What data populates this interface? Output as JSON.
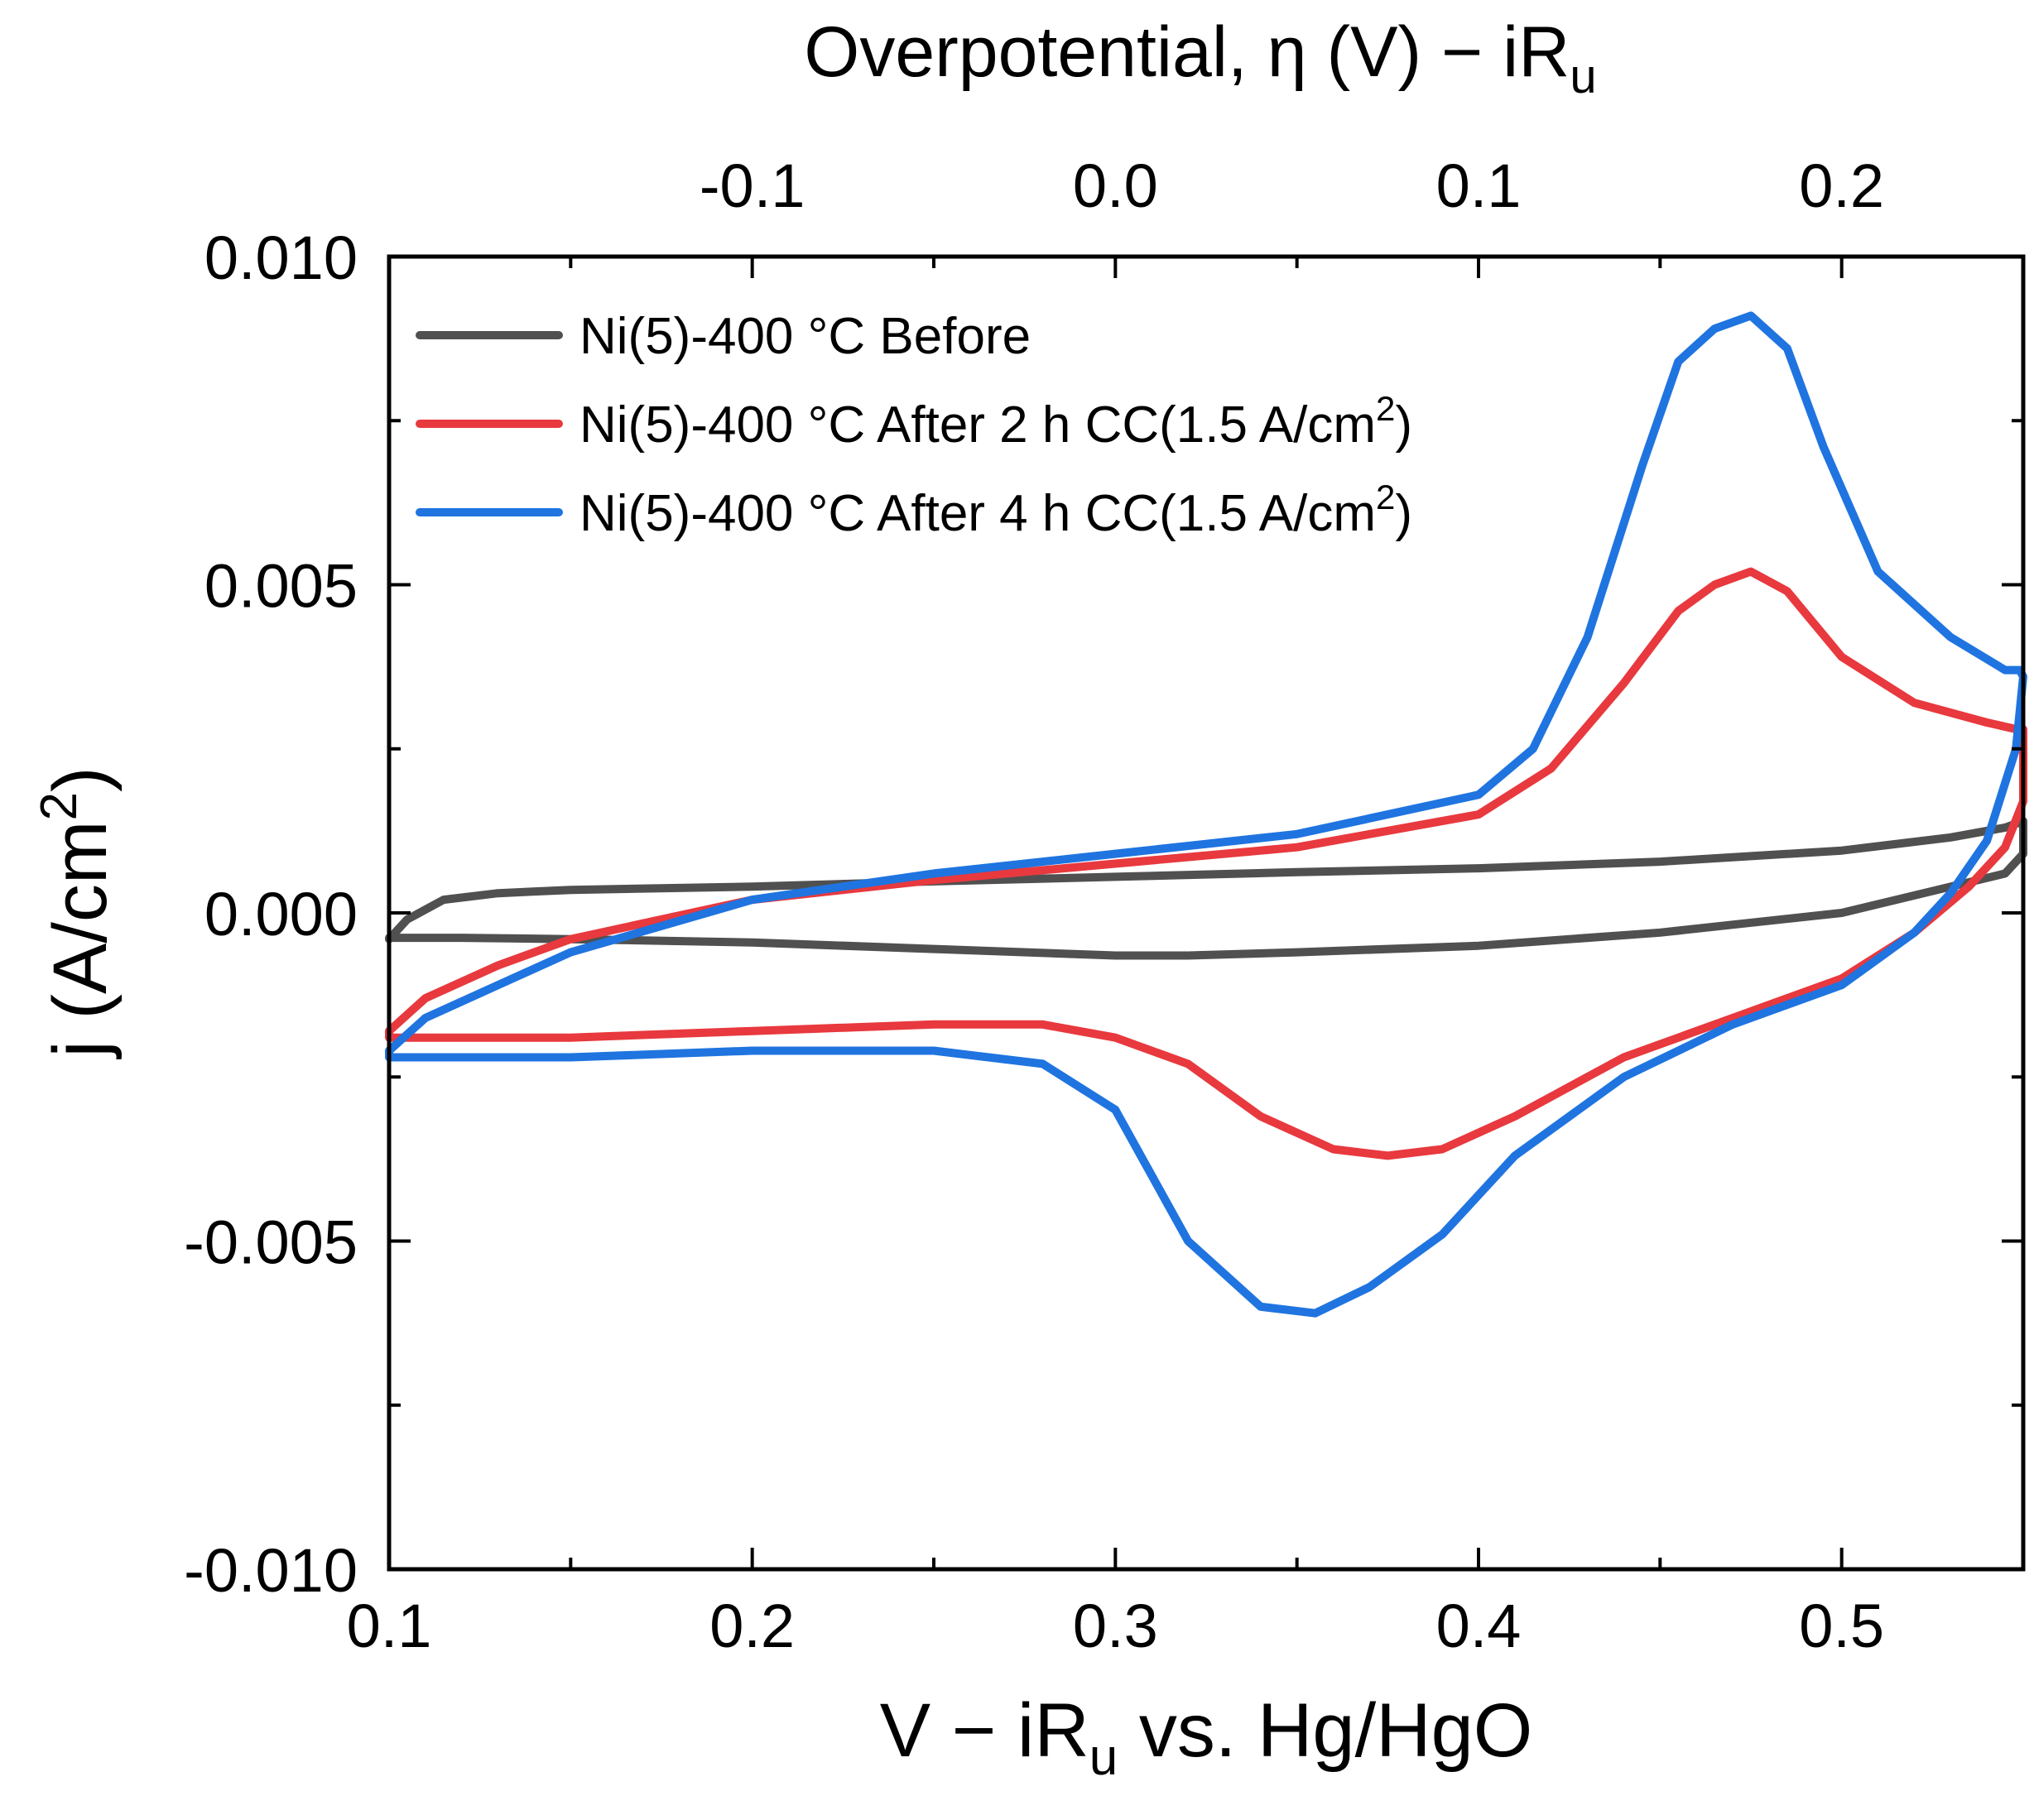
{
  "chart_data": {
    "type": "line",
    "title": "",
    "xlabel": "V − iR",
    "xlabel_sub": "u",
    "xlabel_rest": " vs. Hg/HgO",
    "top_xlabel": "Overpotential, η (V) − iR",
    "top_xlabel_sub": "u",
    "ylabel": "j (A/cm",
    "ylabel_sup": "2",
    "ylabel_end": ")",
    "xlim": [
      0.1,
      0.55
    ],
    "ylim": [
      -0.01,
      0.01
    ],
    "x_ticks": [
      "0.1",
      "0.2",
      "0.3",
      "0.4",
      "0.5"
    ],
    "x_tick_values": [
      0.1,
      0.2,
      0.3,
      0.4,
      0.5
    ],
    "y_ticks": [
      "0.010",
      "0.005",
      "0.000",
      "-0.005",
      "-0.010"
    ],
    "y_tick_values": [
      0.01,
      0.005,
      0.0,
      -0.005,
      -0.01
    ],
    "top_x_ticks": [
      "-0.1",
      "0.0",
      "0.1",
      "0.2"
    ],
    "top_x_tick_values": [
      -0.1,
      0.0,
      0.1,
      0.2
    ],
    "top_axis_offset": 0.3,
    "grid": false,
    "legend_position": "top-left",
    "series": [
      {
        "name": "Ni(5)-400 °C Before",
        "legend_label": "Ni(5)-400 °C Before",
        "legend_sup": "",
        "legend_end": "",
        "color": "#505050",
        "x": [
          0.1,
          0.105,
          0.115,
          0.13,
          0.15,
          0.2,
          0.25,
          0.3,
          0.35,
          0.4,
          0.45,
          0.5,
          0.53,
          0.545,
          0.55,
          0.55,
          0.545,
          0.53,
          0.5,
          0.45,
          0.4,
          0.35,
          0.32,
          0.3,
          0.25,
          0.2,
          0.15,
          0.12,
          0.1,
          0.1
        ],
        "y": [
          -0.0004,
          -0.0001,
          0.0002,
          0.0003,
          0.00035,
          0.0004,
          0.00048,
          0.00055,
          0.00062,
          0.00068,
          0.00078,
          0.00095,
          0.00115,
          0.0013,
          0.0014,
          0.0009,
          0.0006,
          0.0004,
          0.0,
          -0.0003,
          -0.0005,
          -0.0006,
          -0.00065,
          -0.00065,
          -0.00055,
          -0.00045,
          -0.0004,
          -0.00038,
          -0.00038,
          -0.0004
        ]
      },
      {
        "name": "Ni(5)-400 °C After 2 h CC(1.5 A/cm2)",
        "legend_label": "Ni(5)-400 °C After 2 h CC(1.5 A/cm",
        "legend_sup": "2",
        "legend_end": ")",
        "color": "#E8393E",
        "x": [
          0.1,
          0.11,
          0.13,
          0.15,
          0.2,
          0.25,
          0.3,
          0.35,
          0.4,
          0.42,
          0.44,
          0.455,
          0.465,
          0.475,
          0.485,
          0.5,
          0.52,
          0.54,
          0.548,
          0.55,
          0.55,
          0.545,
          0.535,
          0.52,
          0.5,
          0.47,
          0.44,
          0.41,
          0.39,
          0.375,
          0.36,
          0.34,
          0.32,
          0.3,
          0.28,
          0.25,
          0.2,
          0.15,
          0.12,
          0.1,
          0.1
        ],
        "y": [
          -0.0018,
          -0.0013,
          -0.0008,
          -0.0004,
          0.0002,
          0.0005,
          0.00075,
          0.001,
          0.0015,
          0.0022,
          0.0035,
          0.0046,
          0.005,
          0.0052,
          0.0049,
          0.0039,
          0.0032,
          0.0029,
          0.0028,
          0.0028,
          0.0017,
          0.001,
          0.0004,
          -0.0003,
          -0.001,
          -0.0016,
          -0.0022,
          -0.0031,
          -0.0036,
          -0.0037,
          -0.0036,
          -0.0031,
          -0.0023,
          -0.0019,
          -0.0017,
          -0.0017,
          -0.0018,
          -0.0019,
          -0.0019,
          -0.0019,
          -0.0018
        ]
      },
      {
        "name": "Ni(5)-400 °C After 4 h CC(1.5 A/cm2)",
        "legend_label": "Ni(5)-400 °C After 4 h CC(1.5 A/cm",
        "legend_sup": "2",
        "legend_end": ")",
        "color": "#1F74E0",
        "x": [
          0.1,
          0.11,
          0.13,
          0.15,
          0.2,
          0.25,
          0.3,
          0.35,
          0.4,
          0.415,
          0.43,
          0.445,
          0.455,
          0.465,
          0.475,
          0.485,
          0.495,
          0.51,
          0.53,
          0.545,
          0.549,
          0.55,
          0.548,
          0.54,
          0.53,
          0.52,
          0.5,
          0.47,
          0.44,
          0.41,
          0.39,
          0.37,
          0.355,
          0.34,
          0.32,
          0.3,
          0.28,
          0.25,
          0.2,
          0.15,
          0.12,
          0.1,
          0.1
        ],
        "y": [
          -0.0021,
          -0.0016,
          -0.0011,
          -0.0006,
          0.0002,
          0.0006,
          0.0009,
          0.0012,
          0.0018,
          0.0025,
          0.0042,
          0.0068,
          0.0084,
          0.0089,
          0.0091,
          0.0086,
          0.0071,
          0.0052,
          0.0042,
          0.0037,
          0.0037,
          0.0036,
          0.0025,
          0.0011,
          0.0003,
          -0.0003,
          -0.0011,
          -0.0017,
          -0.0025,
          -0.0037,
          -0.0049,
          -0.0057,
          -0.0061,
          -0.006,
          -0.005,
          -0.003,
          -0.0023,
          -0.0021,
          -0.0021,
          -0.0022,
          -0.0022,
          -0.0022,
          -0.0021
        ]
      }
    ]
  }
}
